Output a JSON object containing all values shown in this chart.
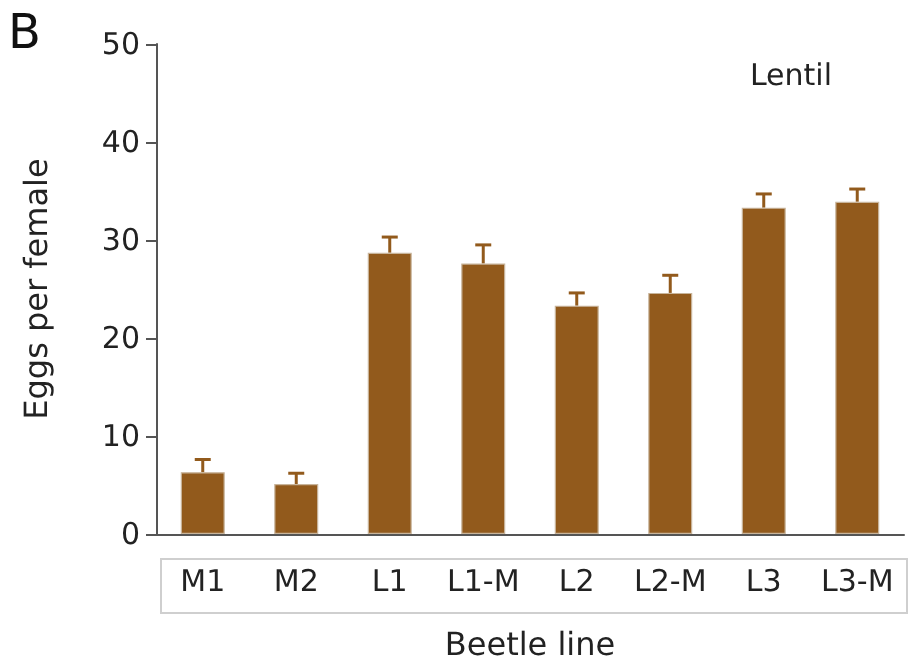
{
  "chart_data": {
    "type": "bar",
    "annotations": [
      "B",
      {
        "text": "Lentil"
      }
    ],
    "xlabel": "Beetle line",
    "ylabel": "Eggs per female",
    "categories": [
      "M1",
      "M2",
      "L1",
      "L1-M",
      "L2",
      "L2-M",
      "L3",
      "L3-M"
    ],
    "values": [
      6.3,
      5.1,
      28.7,
      27.6,
      23.3,
      24.6,
      33.3,
      33.9
    ],
    "errors": [
      [
        6.3,
        7.6
      ],
      [
        5.1,
        6.2
      ],
      [
        28.7,
        30.3
      ],
      [
        27.6,
        29.5
      ],
      [
        23.3,
        24.6
      ],
      [
        24.6,
        26.4
      ],
      [
        33.3,
        34.7
      ],
      [
        33.9,
        35.2
      ]
    ],
    "color": "#925a1c",
    "ylim": [
      0,
      50
    ],
    "yticks": [
      0,
      10,
      20,
      30,
      40,
      50
    ],
    "grid": false
  }
}
